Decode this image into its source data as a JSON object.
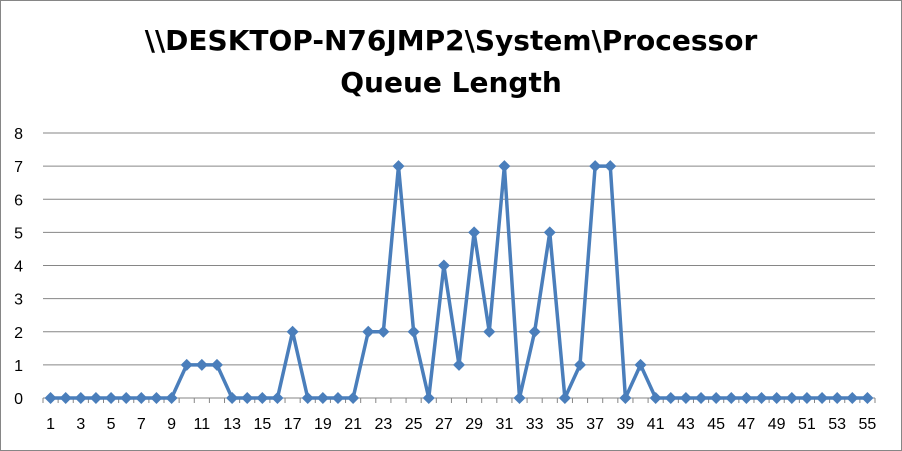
{
  "chart_data": {
    "type": "line",
    "title_line1": "\\\\DESKTOP-N76JMP2\\System\\Processor",
    "title_line2": "Queue Length",
    "xlabel": "",
    "ylabel": "",
    "ylim": [
      0,
      8
    ],
    "yticks": [
      0,
      1,
      2,
      3,
      4,
      5,
      6,
      7,
      8
    ],
    "x": [
      1,
      2,
      3,
      4,
      5,
      6,
      7,
      8,
      9,
      10,
      11,
      12,
      13,
      14,
      15,
      16,
      17,
      18,
      19,
      20,
      21,
      22,
      23,
      24,
      25,
      26,
      27,
      28,
      29,
      30,
      31,
      32,
      33,
      34,
      35,
      36,
      37,
      38,
      39,
      40,
      41,
      42,
      43,
      44,
      45,
      46,
      47,
      48,
      49,
      50,
      51,
      52,
      53,
      54,
      55
    ],
    "xtick_labels": [
      "1",
      "3",
      "5",
      "7",
      "9",
      "11",
      "13",
      "15",
      "17",
      "19",
      "21",
      "23",
      "25",
      "27",
      "29",
      "31",
      "33",
      "35",
      "37",
      "39",
      "41",
      "43",
      "45",
      "47",
      "49",
      "51",
      "53",
      "55"
    ],
    "values": [
      0,
      0,
      0,
      0,
      0,
      0,
      0,
      0,
      0,
      1,
      1,
      1,
      0,
      0,
      0,
      0,
      2,
      0,
      0,
      0,
      0,
      2,
      2,
      7,
      2,
      0,
      4,
      1,
      5,
      2,
      7,
      0,
      2,
      5,
      0,
      1,
      7,
      7,
      0,
      1,
      0,
      0,
      0,
      0,
      0,
      0,
      0,
      0,
      0,
      0,
      0,
      0,
      0,
      0,
      0
    ],
    "grid": true,
    "legend": "none",
    "marker": "diamond",
    "series_color": "#4a7ebb"
  }
}
